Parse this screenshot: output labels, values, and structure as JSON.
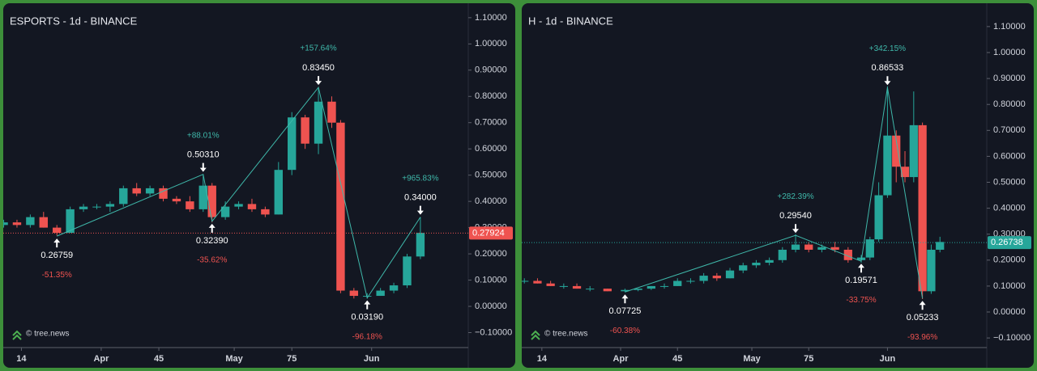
{
  "chart_data": [
    {
      "type": "candlestick",
      "title": "ESPORTS - 1d - BINANCE",
      "watermark": "© tree.news",
      "up_color": "#26a69a",
      "down_color": "#ef5350",
      "pivot_color": "#3fb8aa",
      "x": [
        10,
        13,
        16,
        19,
        22,
        25,
        28,
        31,
        34,
        37,
        40,
        43,
        46,
        49,
        52,
        55,
        57,
        60,
        63,
        66,
        69,
        72,
        75,
        78,
        81,
        84,
        86,
        89,
        92,
        95,
        98,
        101,
        104
      ],
      "open": [
        0.31,
        0.32,
        0.31,
        0.34,
        0.3,
        0.28,
        0.37,
        0.38,
        0.38,
        0.39,
        0.45,
        0.43,
        0.45,
        0.41,
        0.4,
        0.37,
        0.46,
        0.34,
        0.38,
        0.39,
        0.37,
        0.35,
        0.52,
        0.72,
        0.62,
        0.78,
        0.7,
        0.06,
        0.04,
        0.04,
        0.06,
        0.08,
        0.19
      ],
      "high": [
        0.33,
        0.33,
        0.35,
        0.36,
        0.31,
        0.38,
        0.39,
        0.39,
        0.4,
        0.46,
        0.47,
        0.46,
        0.46,
        0.42,
        0.42,
        0.5,
        0.47,
        0.4,
        0.4,
        0.41,
        0.38,
        0.55,
        0.74,
        0.73,
        0.83,
        0.8,
        0.71,
        0.07,
        0.05,
        0.07,
        0.09,
        0.2,
        0.34
      ],
      "low": [
        0.3,
        0.3,
        0.3,
        0.3,
        0.27,
        0.28,
        0.36,
        0.37,
        0.36,
        0.38,
        0.42,
        0.42,
        0.4,
        0.39,
        0.36,
        0.36,
        0.32,
        0.33,
        0.37,
        0.36,
        0.34,
        0.35,
        0.5,
        0.6,
        0.58,
        0.68,
        0.05,
        0.03,
        0.03,
        0.04,
        0.05,
        0.07,
        0.18
      ],
      "close": [
        0.32,
        0.31,
        0.34,
        0.3,
        0.28,
        0.37,
        0.38,
        0.38,
        0.39,
        0.45,
        0.43,
        0.45,
        0.41,
        0.4,
        0.37,
        0.46,
        0.34,
        0.38,
        0.39,
        0.37,
        0.35,
        0.52,
        0.72,
        0.62,
        0.78,
        0.7,
        0.06,
        0.04,
        0.04,
        0.06,
        0.08,
        0.19,
        0.28
      ],
      "xlim": [
        9.9,
        114.8
      ],
      "ylim": [
        -0.157,
        1.155
      ],
      "xticks": [
        14,
        {
          "value": 32,
          "label": "Apr"
        },
        45,
        {
          "value": 62,
          "label": "May"
        },
        75,
        {
          "value": 93,
          "label": "Jun"
        }
      ],
      "yticks": [
        {
          "value": -0.1,
          "label": "−0.10000"
        },
        {
          "value": 0,
          "label": "0.00000"
        },
        {
          "value": 0.1,
          "label": "0.10000"
        },
        {
          "value": 0.2,
          "label": "0.20000"
        },
        {
          "value": 0.3,
          "label": "0.30000"
        },
        {
          "value": 0.4,
          "label": "0.40000"
        },
        {
          "value": 0.5,
          "label": "0.50000"
        },
        {
          "value": 0.6,
          "label": "0.60000"
        },
        {
          "value": 0.7,
          "label": "0.70000"
        },
        {
          "value": 0.8,
          "label": "0.80000"
        },
        {
          "value": 0.9,
          "label": "0.90000"
        },
        {
          "value": 1.0,
          "label": "1.00000"
        },
        {
          "value": 1.1,
          "label": "1.10000"
        }
      ],
      "last_price": 0.27924,
      "last_price_color": "#ef5350",
      "pivots": [
        {
          "x": 22,
          "y": 0.26759,
          "label": "0.26759",
          "change": {
            "value": -51.35,
            "label": "-51.35%"
          }
        },
        {
          "x": 55,
          "y": 0.5031,
          "label": "0.50310",
          "change": {
            "value": 88.01,
            "label": "+88.01%"
          }
        },
        {
          "x": 57,
          "y": 0.3239,
          "label": "0.32390",
          "change": {
            "value": -35.62,
            "label": "-35.62%"
          }
        },
        {
          "x": 81,
          "y": 0.8345,
          "label": "0.83450",
          "change": {
            "value": 157.64,
            "label": "+157.64%"
          }
        },
        {
          "x": 92,
          "y": 0.0319,
          "label": "0.03190",
          "change": {
            "value": -96.18,
            "label": "-96.18%"
          }
        },
        {
          "x": 104,
          "y": 0.34,
          "label": "0.34000",
          "change": {
            "value": 965.83,
            "label": "+965.83%"
          }
        }
      ]
    },
    {
      "type": "candlestick",
      "title": "H - 1d - BINANCE",
      "watermark": "© tree.news",
      "up_color": "#26a69a",
      "down_color": "#ef5350",
      "pivot_color": "#3fb8aa",
      "x": [
        10,
        13,
        16,
        19,
        22,
        25,
        29,
        33,
        36,
        39,
        42,
        45,
        48,
        51,
        54,
        57,
        60,
        63,
        66,
        69,
        72,
        75,
        78,
        81,
        84,
        87,
        89,
        91,
        93,
        95,
        97,
        99,
        101,
        103,
        105
      ],
      "open": [
        0.12,
        0.12,
        0.11,
        0.1,
        0.1,
        0.09,
        0.09,
        0.08,
        0.085,
        0.09,
        0.1,
        0.1,
        0.12,
        0.12,
        0.14,
        0.13,
        0.16,
        0.18,
        0.19,
        0.2,
        0.24,
        0.26,
        0.24,
        0.25,
        0.24,
        0.2,
        0.21,
        0.28,
        0.45,
        0.68,
        0.56,
        0.52,
        0.72,
        0.08,
        0.24
      ],
      "high": [
        0.13,
        0.13,
        0.12,
        0.11,
        0.11,
        0.1,
        0.09,
        0.09,
        0.09,
        0.1,
        0.11,
        0.13,
        0.13,
        0.15,
        0.15,
        0.17,
        0.19,
        0.2,
        0.21,
        0.25,
        0.3,
        0.27,
        0.26,
        0.27,
        0.25,
        0.22,
        0.29,
        0.5,
        0.87,
        0.7,
        0.62,
        0.85,
        0.73,
        0.26,
        0.29
      ],
      "low": [
        0.11,
        0.11,
        0.1,
        0.09,
        0.09,
        0.08,
        0.08,
        0.077,
        0.08,
        0.085,
        0.09,
        0.1,
        0.11,
        0.11,
        0.12,
        0.13,
        0.15,
        0.17,
        0.18,
        0.19,
        0.23,
        0.23,
        0.23,
        0.23,
        0.19,
        0.19,
        0.2,
        0.27,
        0.44,
        0.5,
        0.5,
        0.5,
        0.05,
        0.07,
        0.23
      ],
      "close": [
        0.12,
        0.11,
        0.1,
        0.1,
        0.09,
        0.09,
        0.08,
        0.085,
        0.09,
        0.1,
        0.1,
        0.12,
        0.12,
        0.14,
        0.13,
        0.16,
        0.18,
        0.19,
        0.2,
        0.24,
        0.26,
        0.24,
        0.25,
        0.24,
        0.2,
        0.21,
        0.28,
        0.45,
        0.68,
        0.56,
        0.52,
        0.72,
        0.08,
        0.24,
        0.27
      ],
      "xlim": [
        9.4,
        115.7
      ],
      "ylim": [
        -0.137,
        1.19
      ],
      "xticks": [
        14,
        {
          "value": 32,
          "label": "Apr"
        },
        45,
        {
          "value": 62,
          "label": "May"
        },
        75,
        {
          "value": 93,
          "label": "Jun"
        }
      ],
      "yticks": [
        {
          "value": -0.1,
          "label": "−0.10000"
        },
        {
          "value": 0,
          "label": "0.00000"
        },
        {
          "value": 0.1,
          "label": "0.10000"
        },
        {
          "value": 0.2,
          "label": "0.20000"
        },
        {
          "value": 0.3,
          "label": "0.30000"
        },
        {
          "value": 0.4,
          "label": "0.40000"
        },
        {
          "value": 0.5,
          "label": "0.50000"
        },
        {
          "value": 0.6,
          "label": "0.60000"
        },
        {
          "value": 0.7,
          "label": "0.70000"
        },
        {
          "value": 0.8,
          "label": "0.80000"
        },
        {
          "value": 0.9,
          "label": "0.90000"
        },
        {
          "value": 1.0,
          "label": "1.00000"
        },
        {
          "value": 1.1,
          "label": "1.10000"
        }
      ],
      "last_price": 0.26738,
      "last_price_color": "#26a69a",
      "pivots": [
        {
          "x": 33,
          "y": 0.07725,
          "label": "0.07725",
          "change": {
            "value": -60.38,
            "label": "-60.38%"
          }
        },
        {
          "x": 72,
          "y": 0.2954,
          "label": "0.29540",
          "change": {
            "value": 282.39,
            "label": "+282.39%"
          }
        },
        {
          "x": 87,
          "y": 0.19571,
          "label": "0.19571",
          "change": {
            "value": -33.75,
            "label": "-33.75%"
          }
        },
        {
          "x": 93,
          "y": 0.86533,
          "label": "0.86533",
          "change": {
            "value": 342.15,
            "label": "+342.15%"
          }
        },
        {
          "x": 101,
          "y": 0.05233,
          "label": "0.05233",
          "change": {
            "value": -93.96,
            "label": "-93.96%"
          }
        }
      ]
    }
  ]
}
